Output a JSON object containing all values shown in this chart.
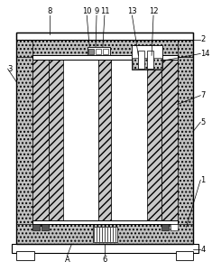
{
  "fig_width": 2.35,
  "fig_height": 3.0,
  "dpi": 100,
  "bg_color": "#ffffff",
  "checker_color": "#c8c8c8",
  "white": "#ffffff",
  "black": "#000000",
  "dark_gray": "#555555",
  "mid_gray": "#999999"
}
